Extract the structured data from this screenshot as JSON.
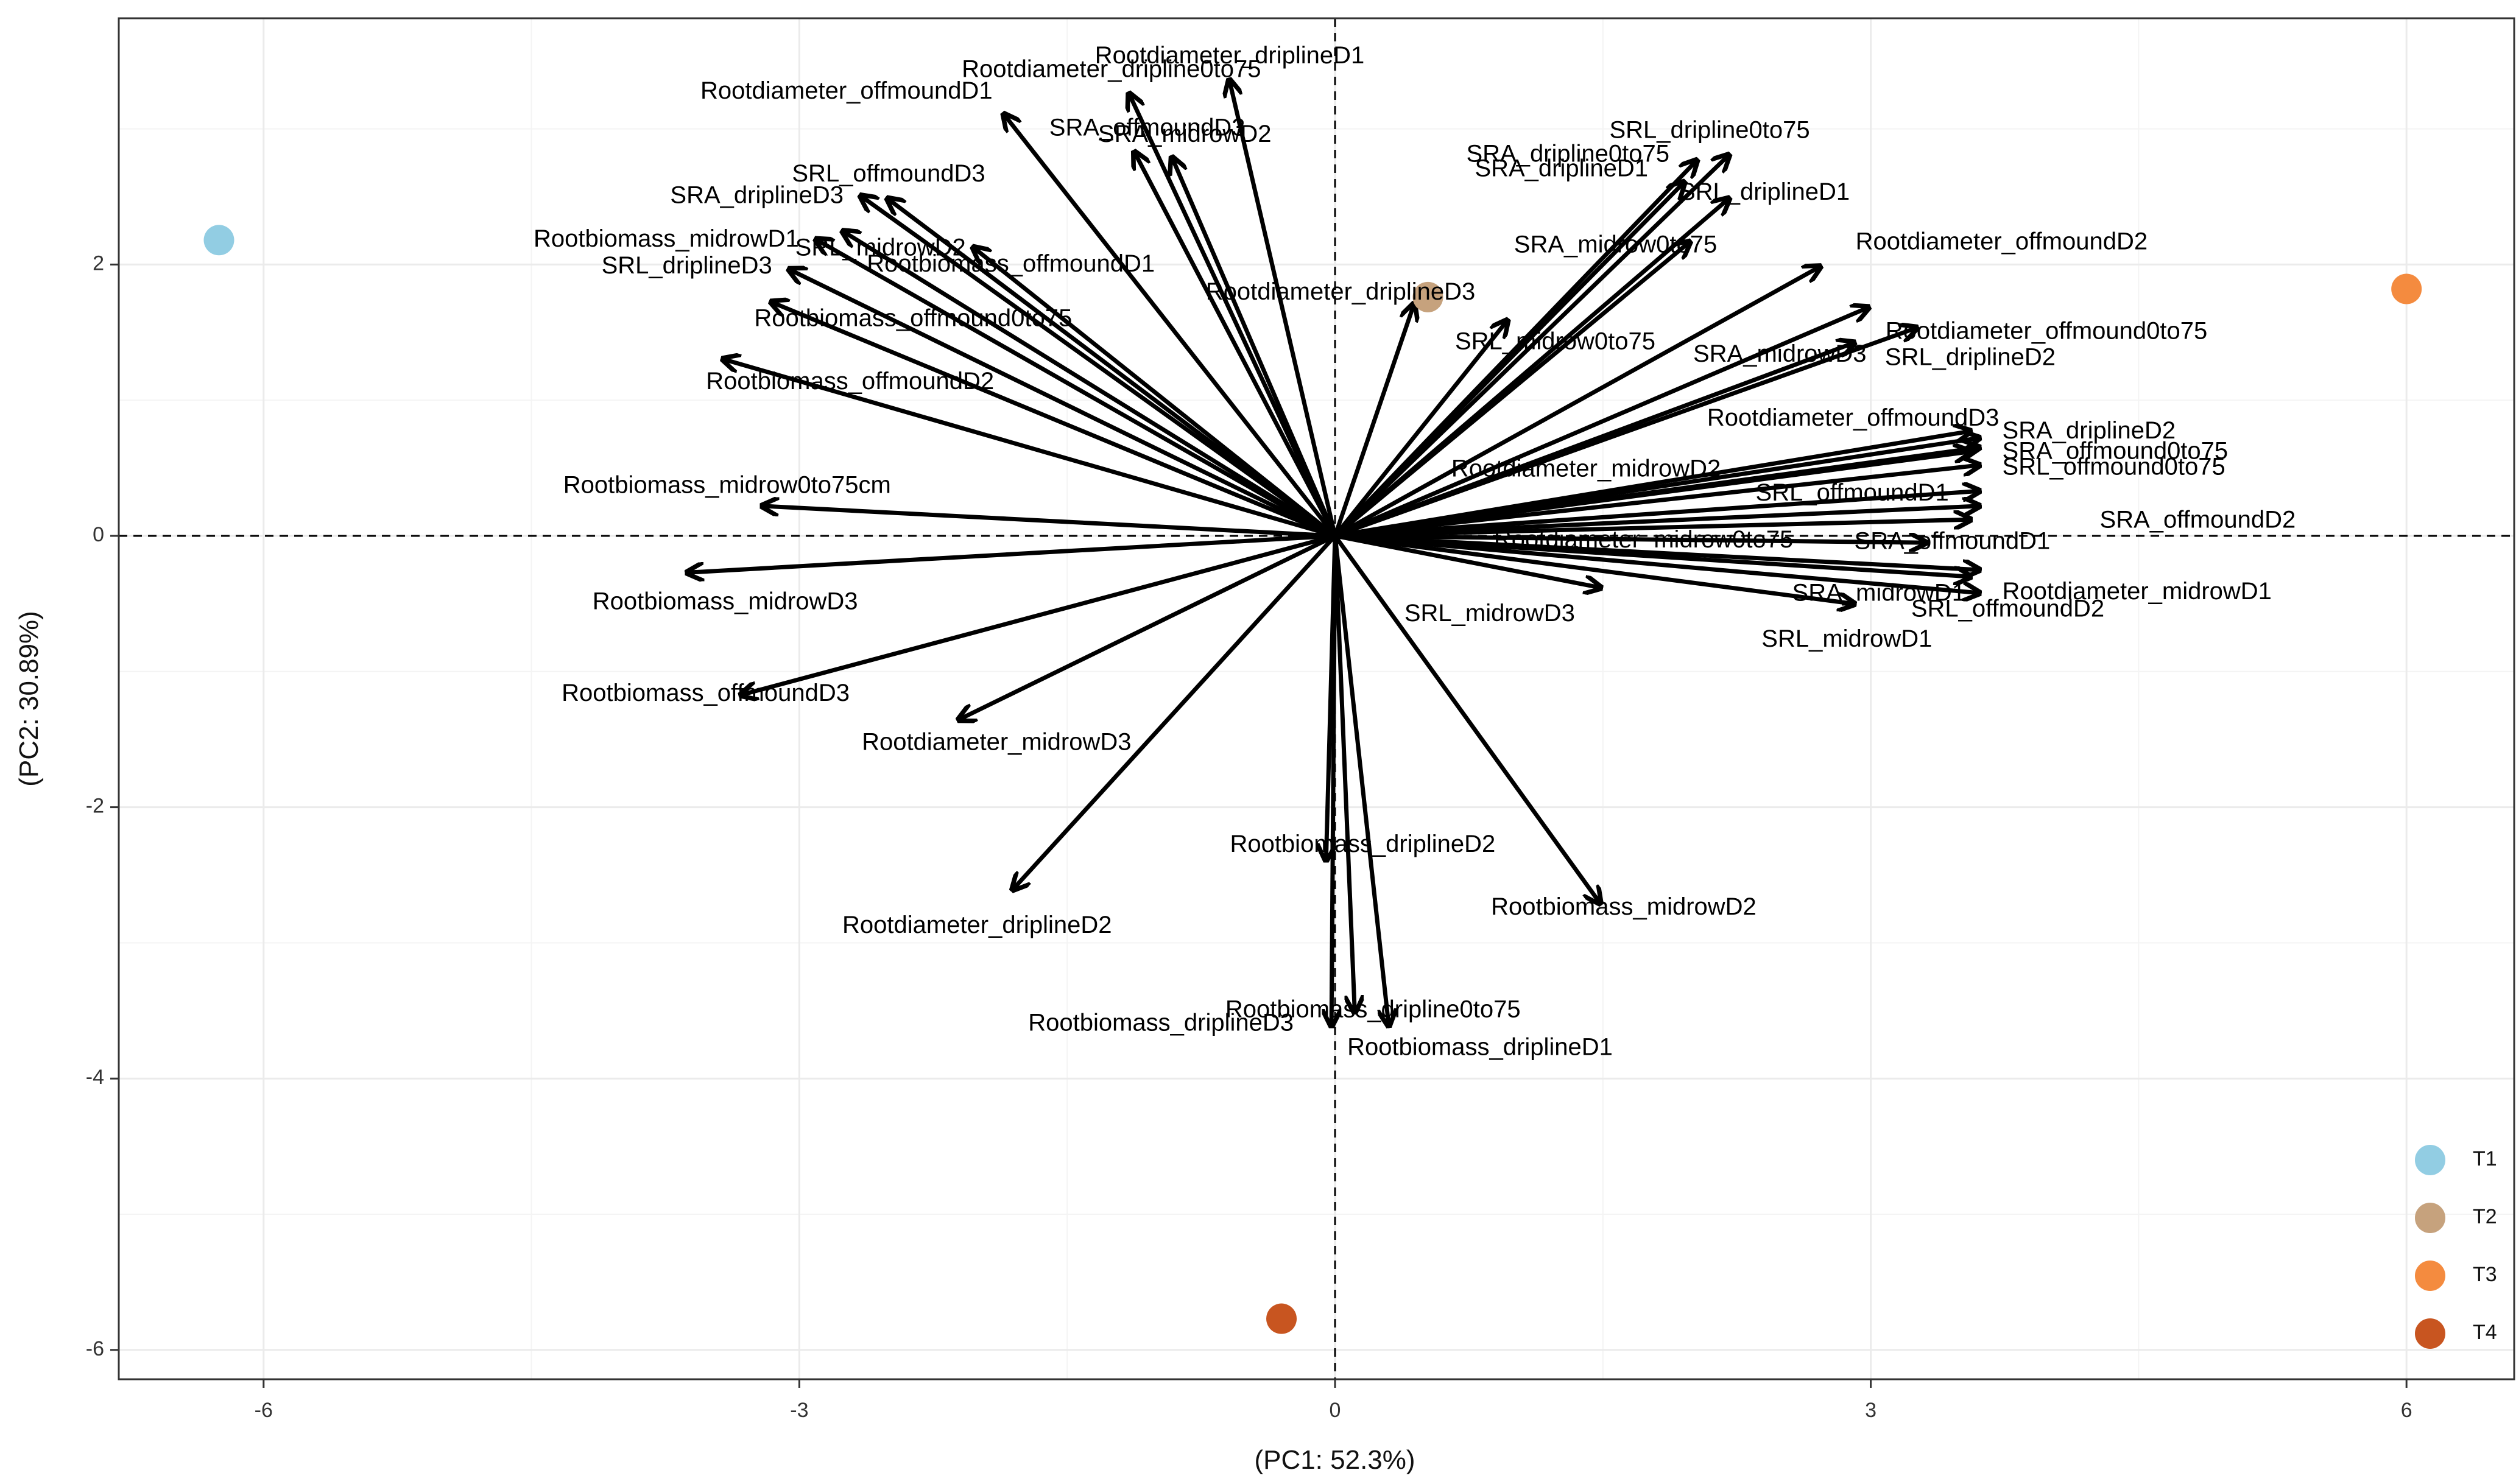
{
  "chart_data": {
    "type": "scatter",
    "subtype": "pca-biplot",
    "title": "",
    "xlabel": "(PC1: 52.3%)",
    "ylabel": "(PC2: 30.89%)",
    "xlim": [
      -6.85,
      6.55
    ],
    "ylim": [
      -6.3,
      3.8
    ],
    "x_ticks": [
      -6,
      -3,
      0,
      3,
      6
    ],
    "y_ticks": [
      -6,
      -4,
      -2,
      0,
      2
    ],
    "grid": true,
    "reference_lines": {
      "x": 0,
      "y": 0,
      "style": "dashed"
    },
    "legend_position": "bottom-right",
    "groups": [
      {
        "name": "T1",
        "color": "#92cde3",
        "x": -6.25,
        "y": 2.18
      },
      {
        "name": "T2",
        "color": "#c6a27d",
        "x": 0.52,
        "y": 1.76
      },
      {
        "name": "T3",
        "color": "#f48b3f",
        "x": 6.0,
        "y": 1.82
      },
      {
        "name": "T4",
        "color": "#c85520",
        "x": -0.3,
        "y": -5.77
      }
    ],
    "loadings": [
      {
        "label": "Rootdiameter_driplineD1",
        "x": -0.59,
        "y": 3.35
      },
      {
        "label": "Rootdiameter_dripline0to75",
        "x": -1.15,
        "y": 3.25
      },
      {
        "label": "Rootdiameter_offmoundD1",
        "x": -1.85,
        "y": 3.1
      },
      {
        "label": "SRA_offmoundD3",
        "x": -1.12,
        "y": 2.82
      },
      {
        "label": "SRA_midrowD2",
        "x": -0.91,
        "y": 2.78
      },
      {
        "label": "SRL_offmoundD3",
        "x": -2.5,
        "y": 2.48
      },
      {
        "label": "SRA_driplineD3",
        "x": -2.65,
        "y": 2.5
      },
      {
        "label": "Rootbiomass_offmoundD1",
        "x": -2.02,
        "y": 2.12
      },
      {
        "label": "Rootbiomass_midrowD1",
        "x": -2.9,
        "y": 2.18
      },
      {
        "label": "SRL_midrowD2",
        "x": -2.75,
        "y": 2.24
      },
      {
        "label": "SRL_driplineD3",
        "x": -3.05,
        "y": 1.96
      },
      {
        "label": "Rootbiomass_offmound0to75",
        "x": -3.15,
        "y": 1.72
      },
      {
        "label": "Rootbiomass_offmoundD2",
        "x": -3.42,
        "y": 1.3
      },
      {
        "label": "Rootbiomass_midrow0to75cm",
        "x": -3.2,
        "y": 0.22
      },
      {
        "label": "Rootbiomass_midrowD3",
        "x": -3.62,
        "y": -0.27
      },
      {
        "label": "Rootbiomass_offmoundD3",
        "x": -3.32,
        "y": -1.17
      },
      {
        "label": "Rootdiameter_midrowD3",
        "x": -2.1,
        "y": -1.35
      },
      {
        "label": "Rootdiameter_driplineD2",
        "x": -1.8,
        "y": -2.6
      },
      {
        "label": "Rootbiomass_driplineD2",
        "x": -0.05,
        "y": -2.38
      },
      {
        "label": "Rootbiomass_driplineD3",
        "x": -0.02,
        "y": -3.6
      },
      {
        "label": "Rootbiomass_dripline0to75",
        "x": 0.11,
        "y": -3.5
      },
      {
        "label": "Rootbiomass_driplineD1",
        "x": 0.3,
        "y": -3.6
      },
      {
        "label": "Rootbiomass_midrowD2",
        "x": 1.48,
        "y": -2.7
      },
      {
        "label": "Rootdiameter_driplineD3",
        "x": 0.44,
        "y": 1.7
      },
      {
        "label": "SRL_midrow0to75",
        "x": 0.96,
        "y": 1.58
      },
      {
        "label": "SRA_dripline0to75",
        "x": 2.02,
        "y": 2.76
      },
      {
        "label": "SRL_dripline0to75",
        "x": 2.2,
        "y": 2.8
      },
      {
        "label": "SRA_driplineD1",
        "x": 1.95,
        "y": 2.6
      },
      {
        "label": "SRL_driplineD1",
        "x": 2.2,
        "y": 2.48
      },
      {
        "label": "SRA_midrow0to75",
        "x": 1.98,
        "y": 2.16
      },
      {
        "label": "Rootdiameter_offmoundD2",
        "x": 2.71,
        "y": 1.98
      },
      {
        "label": "Rootdiameter_offmound0to75",
        "x": 2.98,
        "y": 1.68
      },
      {
        "label": "SRA_midrowD3",
        "x": 2.9,
        "y": 1.42
      },
      {
        "label": "SRL_driplineD2",
        "x": 3.25,
        "y": 1.53
      },
      {
        "label": "Rootdiameter_offmoundD3",
        "x": 3.55,
        "y": 0.77
      },
      {
        "label": "SRA_driplineD2",
        "x": 3.6,
        "y": 0.72
      },
      {
        "label": "Rootdiameter_midrowD2",
        "x": 3.55,
        "y": 0.62
      },
      {
        "label": "SRA_offmound0to75",
        "x": 3.6,
        "y": 0.65
      },
      {
        "label": "SRL_offmound0to75",
        "x": 3.6,
        "y": 0.52
      },
      {
        "label": "SRL_offmoundD1",
        "x": 3.6,
        "y": 0.33
      },
      {
        "label": "SRA_offmoundD2",
        "x": 3.6,
        "y": 0.22
      },
      {
        "label": "Rootdiameter_midrow0to75",
        "x": 3.55,
        "y": 0.12
      },
      {
        "label": "SRA_offmoundD1",
        "x": 3.3,
        "y": -0.05
      },
      {
        "label": "SRA_midrowD1",
        "x": 3.6,
        "y": -0.25
      },
      {
        "label": "Rootdiameter_midrowD1",
        "x": 3.6,
        "y": -0.42
      },
      {
        "label": "SRL_offmoundD2",
        "x": 3.55,
        "y": -0.3
      },
      {
        "label": "SRL_midrowD1",
        "x": 2.9,
        "y": -0.5
      },
      {
        "label": "SRL_midrowD3",
        "x": 1.48,
        "y": -0.38
      }
    ]
  }
}
